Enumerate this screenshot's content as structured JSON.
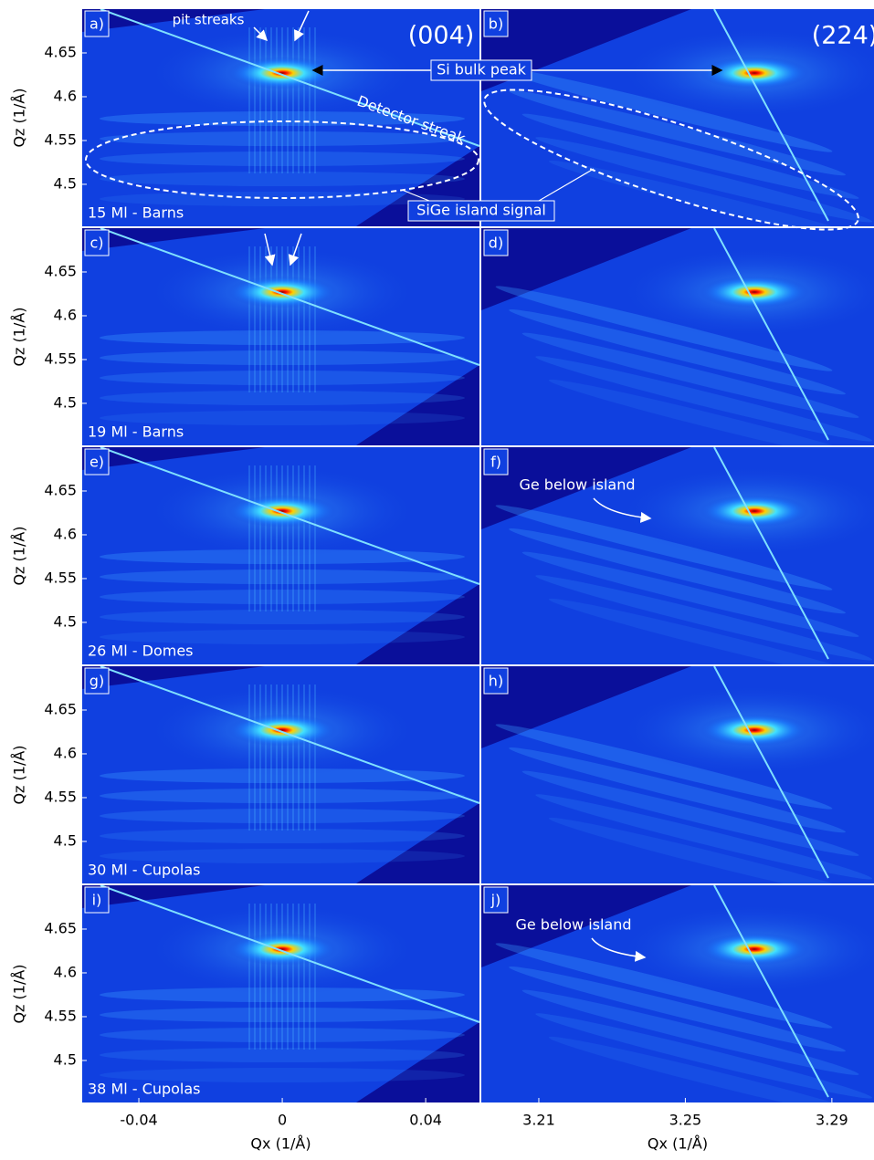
{
  "chart_data": {
    "type": "image-grid",
    "xlabel": "Qx (1/Å)",
    "ylabel": "Qz (1/Å)",
    "ylim": [
      4.452,
      4.7
    ],
    "yticks": [
      4.5,
      4.55,
      4.6,
      4.65
    ],
    "columns": [
      {
        "title": "(004)",
        "xlim": [
          -0.0558,
          0.055
        ],
        "xticks": [
          -0.04,
          0,
          0.04
        ]
      },
      {
        "title": "(224)",
        "xlim": [
          3.1943,
          3.3015
        ],
        "xticks": [
          3.21,
          3.25,
          3.29
        ]
      }
    ],
    "panels": [
      {
        "label": "a)",
        "caption": "15 Ml - Barns"
      },
      {
        "label": "b)"
      },
      {
        "label": "c)",
        "caption": "19 Ml - Barns"
      },
      {
        "label": "d)"
      },
      {
        "label": "e)",
        "caption": "26 Ml - Domes"
      },
      {
        "label": "f)"
      },
      {
        "label": "g)",
        "caption": "30 Ml - Cupolas"
      },
      {
        "label": "h)"
      },
      {
        "label": "i)",
        "caption": "38 Ml - Cupolas"
      },
      {
        "label": "j)"
      }
    ],
    "annotations": {
      "pit_streaks": "pit streaks",
      "detector_streak": "Detector streak",
      "si_bulk_peak": "Si bulk peak",
      "sige_island_signal": "SiGe island signal",
      "ge_below_island": "Ge below island"
    }
  }
}
